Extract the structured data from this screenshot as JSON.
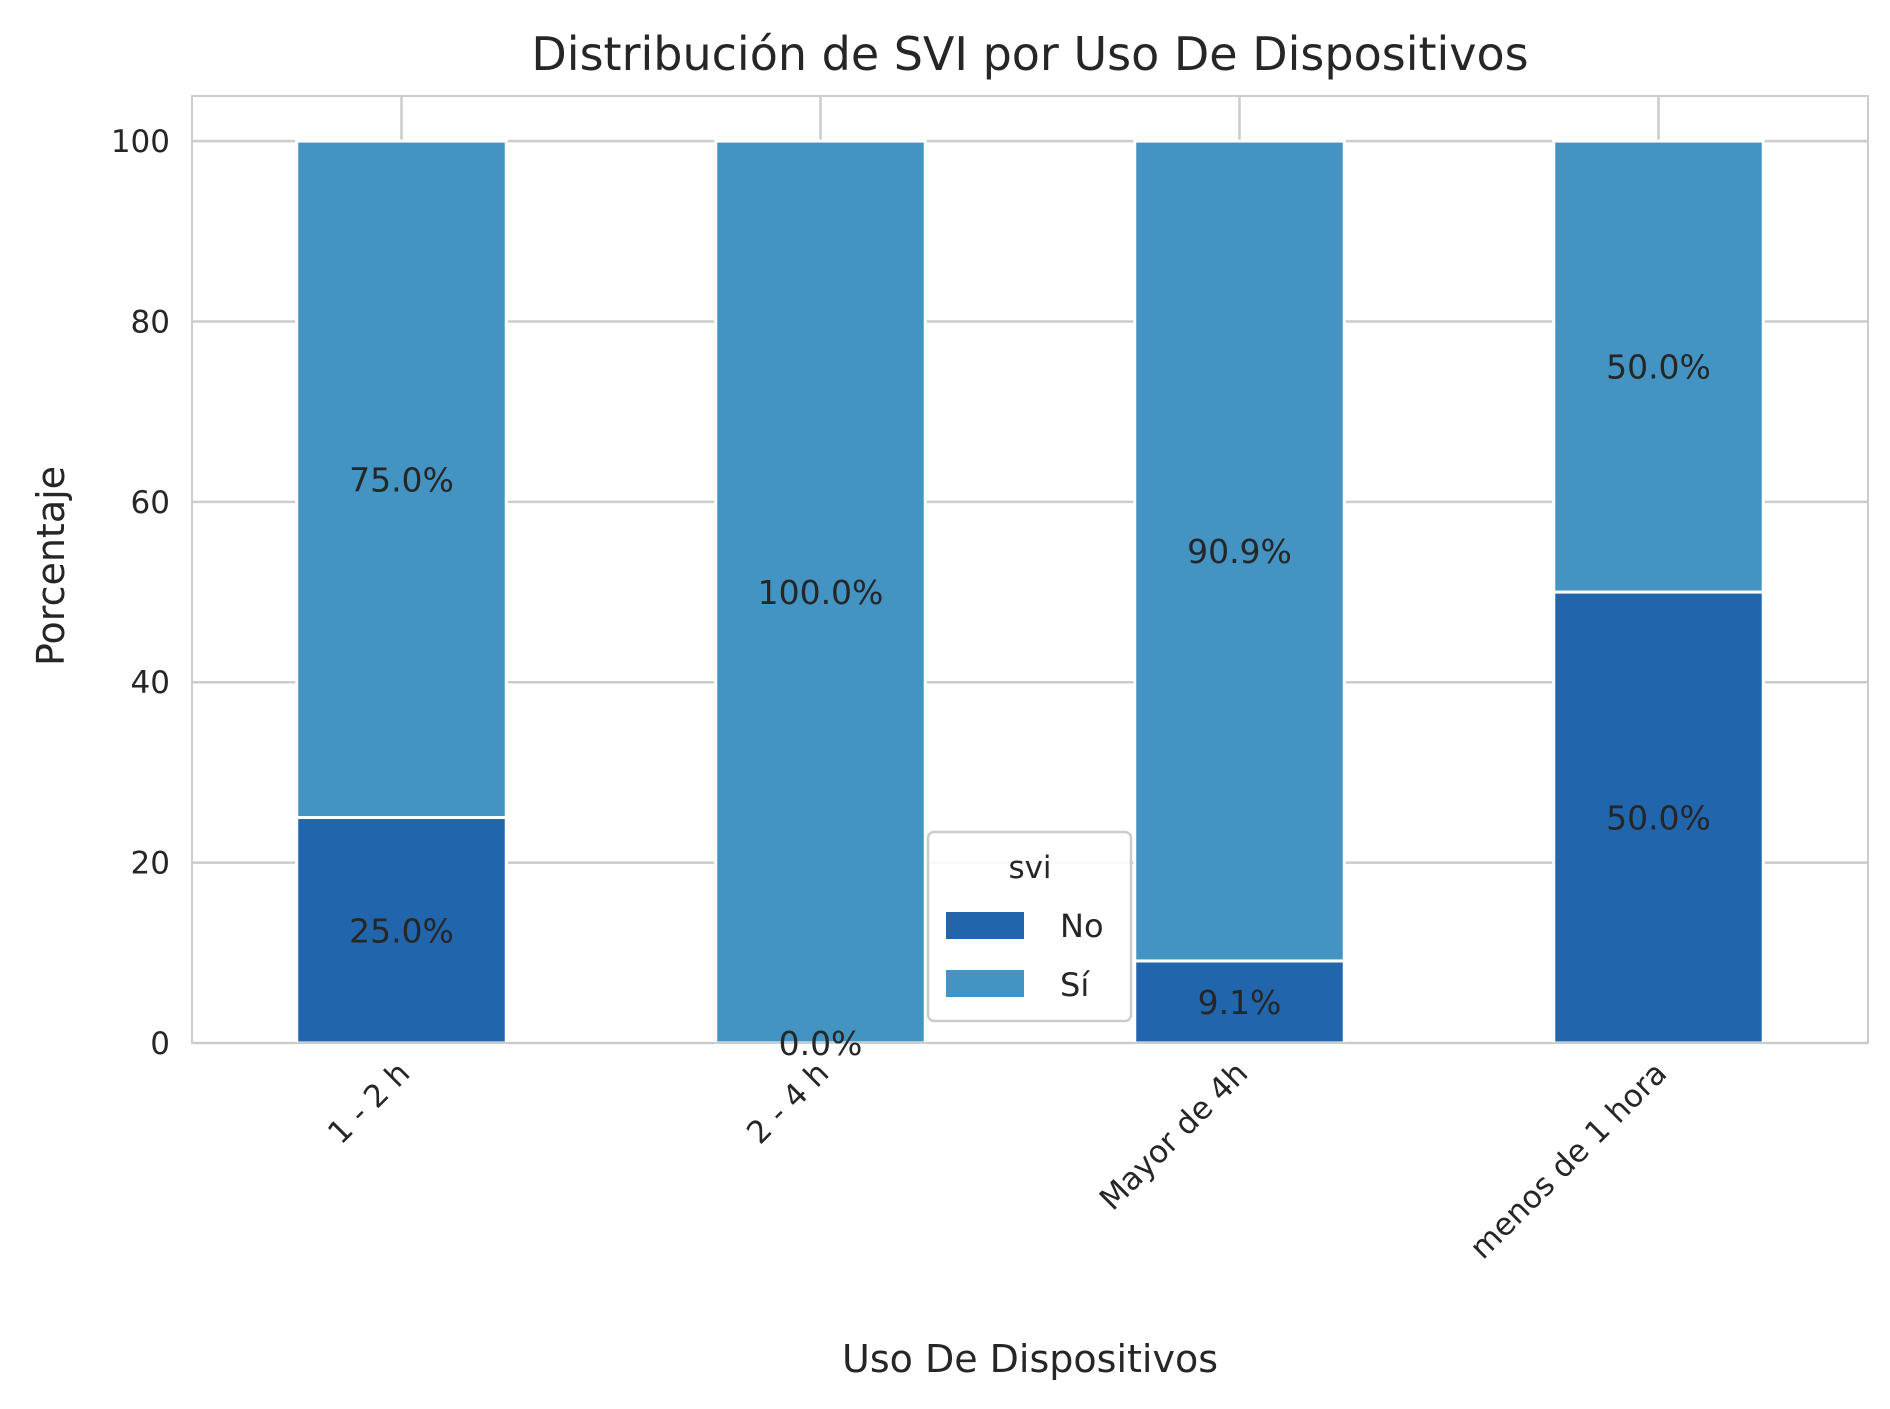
{
  "chart_data": {
    "type": "bar",
    "stacked": true,
    "title": "Distribución de SVI por Uso De Dispositivos",
    "xlabel": "Uso De Dispositivos",
    "ylabel": "Porcentaje",
    "categories": [
      "1 - 2 h",
      "2 - 4 h",
      "Mayor de 4h",
      "menos de 1 hora"
    ],
    "ylim": [
      0,
      105
    ],
    "yticks": [
      0,
      20,
      40,
      60,
      80,
      100
    ],
    "grid": true,
    "legend": {
      "title": "svi",
      "placement": "lower-center"
    },
    "series": [
      {
        "name": "No",
        "color": "#2166ac",
        "values": [
          25.0,
          0.0,
          9.1,
          50.0
        ],
        "labels": [
          "25.0%",
          "0.0%",
          "9.1%",
          "50.0%"
        ]
      },
      {
        "name": "Sí",
        "color": "#4393c3",
        "values": [
          75.0,
          100.0,
          90.9,
          50.0
        ],
        "labels": [
          "75.0%",
          "100.0%",
          "90.9%",
          "50.0%"
        ]
      }
    ]
  }
}
